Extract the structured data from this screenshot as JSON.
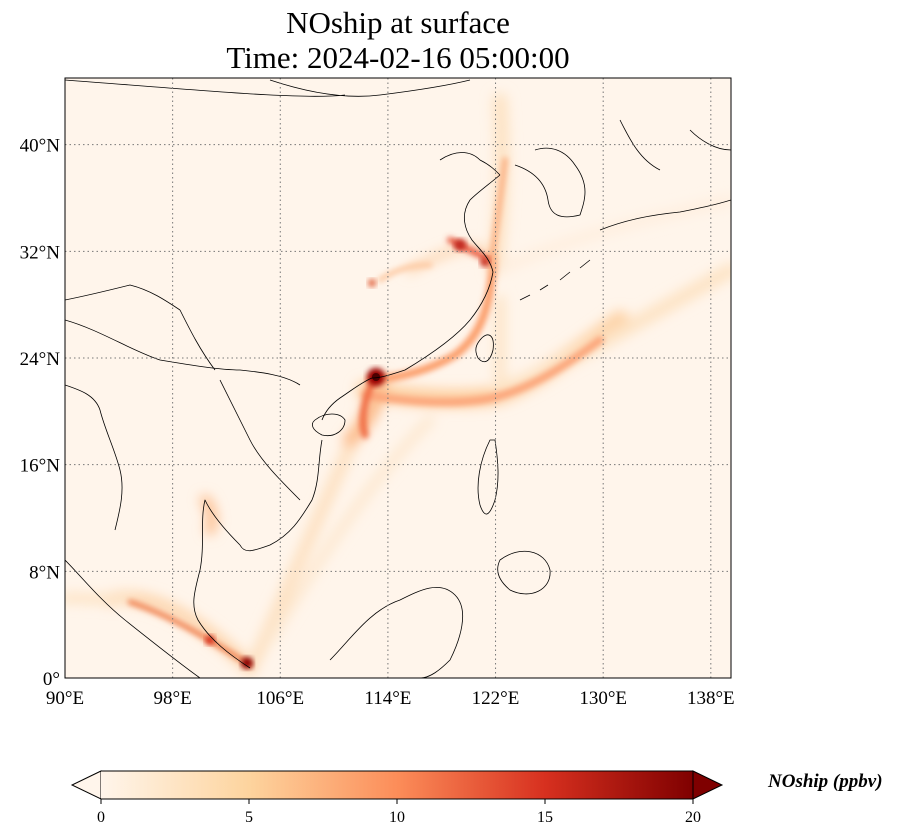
{
  "title": {
    "line1": "NOship at surface",
    "line2": "Time: 2024-02-16 05:00:00"
  },
  "map": {
    "projection": "PlateCarree",
    "lon_range": [
      90,
      139.5
    ],
    "lat_range": [
      0,
      45
    ],
    "background_color": "#fff5eb",
    "coastline_color": "#000000",
    "gridline_style": "dotted",
    "lon_ticks": [
      {
        "value": 90,
        "label": "90°E"
      },
      {
        "value": 98,
        "label": "98°E"
      },
      {
        "value": 106,
        "label": "106°E"
      },
      {
        "value": 114,
        "label": "114°E"
      },
      {
        "value": 122,
        "label": "122°E"
      },
      {
        "value": 130,
        "label": "130°E"
      },
      {
        "value": 138,
        "label": "138°E"
      }
    ],
    "lat_ticks": [
      {
        "value": 0,
        "label": "0°"
      },
      {
        "value": 8,
        "label": "8°N"
      },
      {
        "value": 16,
        "label": "16°N"
      },
      {
        "value": 24,
        "label": "24°N"
      },
      {
        "value": 32,
        "label": "32°N"
      },
      {
        "value": 40,
        "label": "40°N"
      }
    ]
  },
  "colorbar": {
    "colormap": "OrRd",
    "min": 0,
    "max": 20,
    "extend": "both",
    "ticks": [
      0,
      5,
      10,
      15,
      20
    ],
    "label": "NOship (ppbv)",
    "colors": [
      "#fff5eb",
      "#fdd49e",
      "#fc8d59",
      "#d7301f",
      "#7f0000"
    ]
  }
}
